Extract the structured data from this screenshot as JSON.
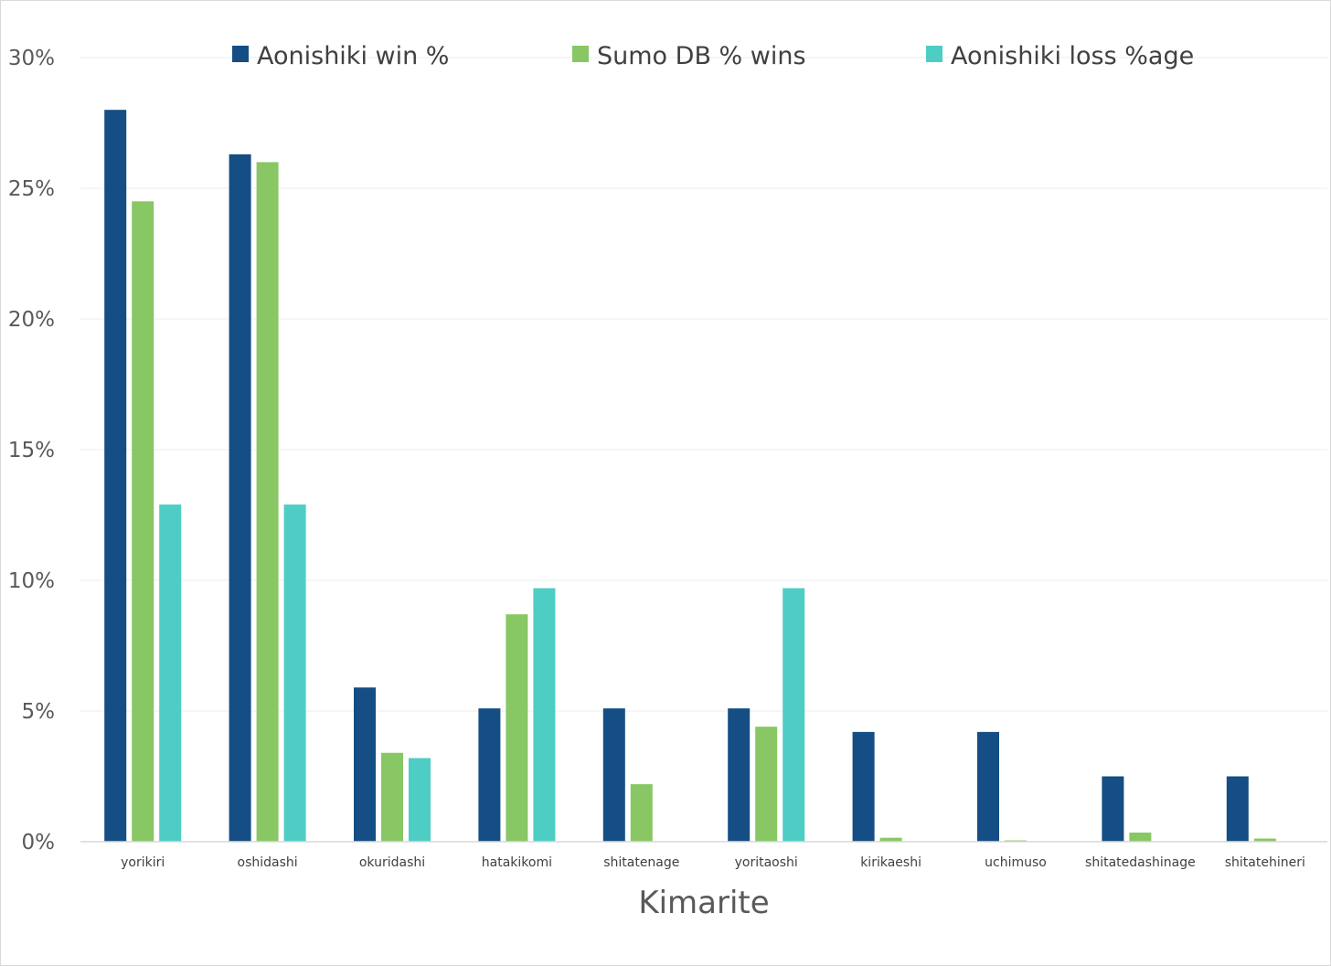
{
  "chart_data": {
    "type": "bar",
    "xlabel": "Kimarite",
    "ylabel": "",
    "ylim": [
      0,
      30
    ],
    "yticks": [
      0,
      5,
      10,
      15,
      20,
      25,
      30
    ],
    "ytick_labels": [
      "0%",
      "5%",
      "10%",
      "15%",
      "20%",
      "25%",
      "30%"
    ],
    "grid": "horizontal",
    "legend_position": "top",
    "categories": [
      "yorikiri",
      "oshidashi",
      "okuridashi",
      "hatakikomi",
      "shitatenage",
      "yoritaoshi",
      "kirikaeshi",
      "uchimuso",
      "shitatedashinage",
      "shitatehineri"
    ],
    "series": [
      {
        "name": "Aonishiki win %",
        "color": "#144e84",
        "values": [
          28.0,
          26.3,
          5.9,
          5.1,
          5.1,
          5.1,
          4.2,
          4.2,
          2.5,
          2.5
        ]
      },
      {
        "name": "Sumo DB % wins",
        "color": "#88c764",
        "values": [
          24.5,
          26.0,
          3.4,
          8.7,
          2.2,
          4.4,
          0.15,
          0.05,
          0.35,
          0.12
        ]
      },
      {
        "name": "Aonishiki loss %age",
        "color": "#4ecdc4",
        "values": [
          12.9,
          12.9,
          3.2,
          9.7,
          0,
          9.7,
          0,
          0,
          0,
          0
        ]
      }
    ]
  }
}
